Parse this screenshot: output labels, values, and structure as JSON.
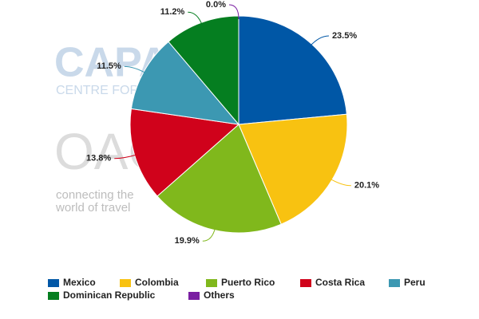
{
  "chart_data": {
    "type": "pie",
    "categories": [
      "Mexico",
      "Colombia",
      "Puerto Rico",
      "Costa Rica",
      "Peru",
      "Dominican Republic",
      "Others"
    ],
    "values": [
      23.5,
      20.1,
      19.9,
      13.8,
      11.5,
      11.2,
      0.0
    ],
    "value_labels": [
      "23.5%",
      "20.1%",
      "19.9%",
      "13.8%",
      "11.5%",
      "11.2%",
      "0.0%"
    ],
    "colors": [
      "#0057a6",
      "#f8c211",
      "#80b81c",
      "#d0021b",
      "#3c98b2",
      "#057e20",
      "#7a1fa2"
    ],
    "watermarks": [
      "CAPA",
      "CENTRE FOR",
      "OAG",
      "connecting the",
      "world of travel"
    ]
  }
}
